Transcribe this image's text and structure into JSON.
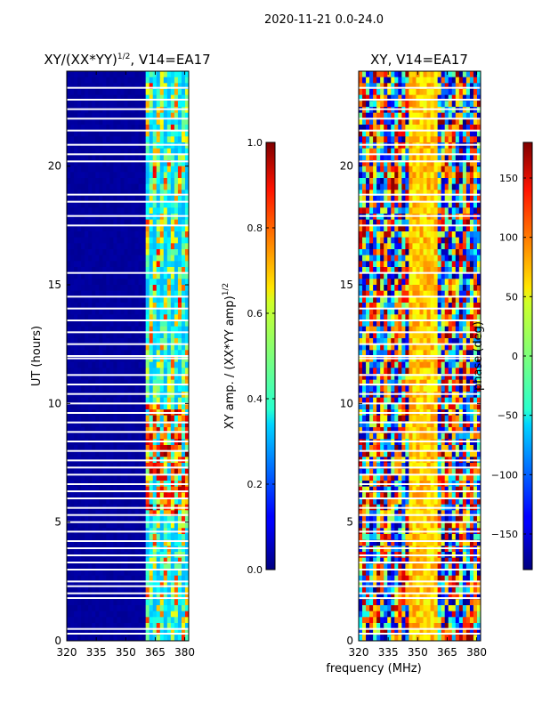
{
  "suptitle": "2020-11-21 0.0-24.0",
  "shared_xlabel": "frequency (MHz)",
  "colors": {
    "jet_dark_blue": "#00007f",
    "jet_red": "#7f0000",
    "gap_white": "#ffffff"
  },
  "chart_data": [
    {
      "type": "heatmap",
      "title_main": "XY/(XX*YY)",
      "title_exp": "1/2",
      "title_rest": ", V14=EA17",
      "xlabel": "",
      "ylabel": "UT (hours)",
      "xlim": [
        320,
        382
      ],
      "ylim": [
        0,
        24
      ],
      "xticks": [
        320,
        335,
        350,
        365,
        380
      ],
      "yticks": [
        0,
        5,
        10,
        15,
        20
      ],
      "colorbar": {
        "label_main": "XY amp. / (XX*YY amp)",
        "label_exp": "1/2",
        "range": [
          0.0,
          1.0
        ],
        "ticks": [
          "0.0",
          "0.2",
          "0.4",
          "0.6",
          "0.8",
          "1.0"
        ],
        "tick_values": [
          0.0,
          0.2,
          0.4,
          0.6,
          0.8,
          1.0
        ]
      },
      "description_values": {
        "low_freq_band_MHz": [
          320,
          360
        ],
        "low_band_level": 0.02,
        "high_freq_band_MHz": [
          360,
          382
        ],
        "high_band_level_range": [
          0.3,
          0.9
        ]
      },
      "gap_hours": [
        0.3,
        0.5,
        1.8,
        2.0,
        2.3,
        2.5,
        3.0,
        3.3,
        3.6,
        3.9,
        4.2,
        4.6,
        5.0,
        5.3,
        5.6,
        6.0,
        6.3,
        6.6,
        7.0,
        7.3,
        7.6,
        8.0,
        8.4,
        8.8,
        9.2,
        9.6,
        10.0,
        10.4,
        10.8,
        11.2,
        11.9,
        12.0,
        12.5,
        13.0,
        13.5,
        14.0,
        14.5,
        15.5,
        17.5,
        17.9,
        18.5,
        18.8,
        20.2,
        20.5,
        20.9,
        21.5,
        22.0,
        22.4,
        22.8,
        23.3
      ]
    },
    {
      "type": "heatmap",
      "title_main": "XY, V14=EA17",
      "xlabel": "frequency (MHz)",
      "ylabel": "",
      "xlim": [
        320,
        382
      ],
      "ylim": [
        0,
        24
      ],
      "xticks": [
        320,
        335,
        350,
        365,
        380
      ],
      "yticks": [
        0,
        5,
        10,
        15,
        20
      ],
      "colorbar": {
        "label_main": "phase (deg)",
        "range": [
          -180,
          180
        ],
        "ticks": [
          "−150",
          "−100",
          "−50",
          "0",
          "50",
          "100",
          "150"
        ],
        "tick_values": [
          -150,
          -100,
          -50,
          0,
          50,
          100,
          150
        ]
      },
      "description_values": {
        "phase_range_deg": [
          -180,
          180
        ]
      },
      "gap_hours": [
        0.3,
        0.5,
        1.8,
        2.0,
        2.3,
        2.5,
        3.0,
        3.3,
        3.6,
        3.9,
        4.2,
        4.6,
        5.0,
        5.3,
        5.6,
        6.0,
        6.3,
        6.6,
        7.0,
        7.3,
        7.6,
        8.0,
        8.4,
        8.8,
        9.2,
        9.6,
        10.0,
        10.4,
        10.8,
        11.2,
        11.9,
        12.0,
        12.5,
        13.0,
        13.5,
        14.0,
        14.5,
        15.5,
        17.5,
        17.9,
        18.5,
        18.8,
        20.2,
        20.5,
        20.9,
        21.5,
        22.0,
        22.4,
        22.8,
        23.3
      ]
    }
  ]
}
